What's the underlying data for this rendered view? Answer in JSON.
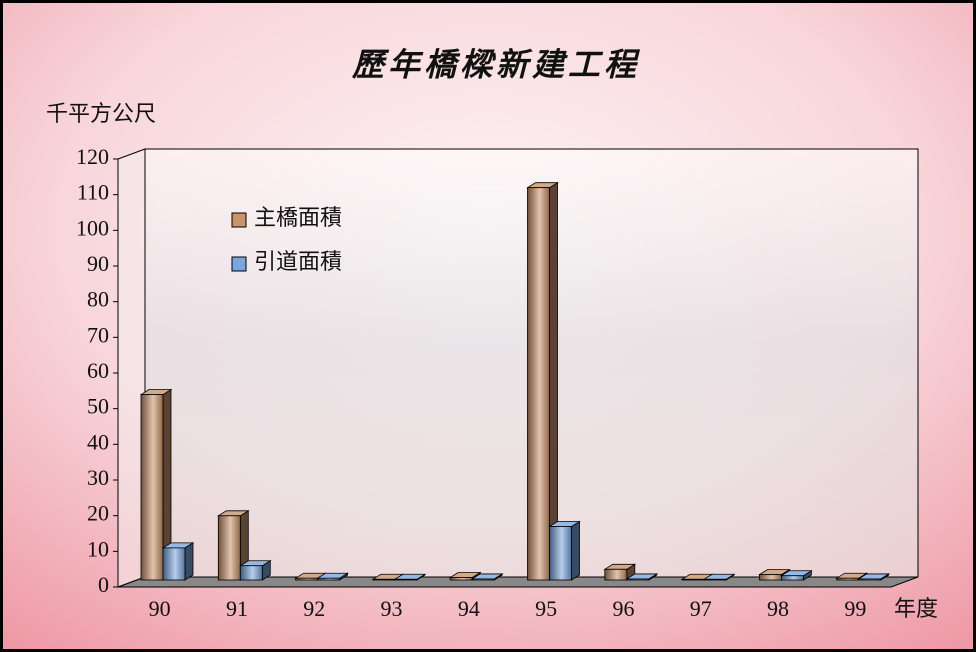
{
  "chart_data": {
    "type": "bar3d",
    "title": "歷年橋樑新建工程",
    "y_label": "千平方公尺",
    "x_label": "年度",
    "categories": [
      "90",
      "91",
      "92",
      "93",
      "94",
      "95",
      "96",
      "97",
      "98",
      "99"
    ],
    "series": [
      {
        "name": "主橋面積",
        "color": "#c8946a",
        "values": [
          52,
          18,
          0.5,
          0.2,
          0.7,
          110,
          3,
          0.2,
          1.5,
          0.5
        ]
      },
      {
        "name": "引道面積",
        "color": "#7aa6e0",
        "values": [
          9,
          4,
          0.5,
          0.2,
          0.3,
          15,
          0.3,
          0.2,
          1.2,
          0.3
        ]
      }
    ],
    "ylim": [
      0,
      120
    ],
    "yticks": [
      0,
      10,
      20,
      30,
      40,
      50,
      60,
      70,
      80,
      90,
      100,
      110,
      120
    ],
    "legend": "upper left"
  }
}
